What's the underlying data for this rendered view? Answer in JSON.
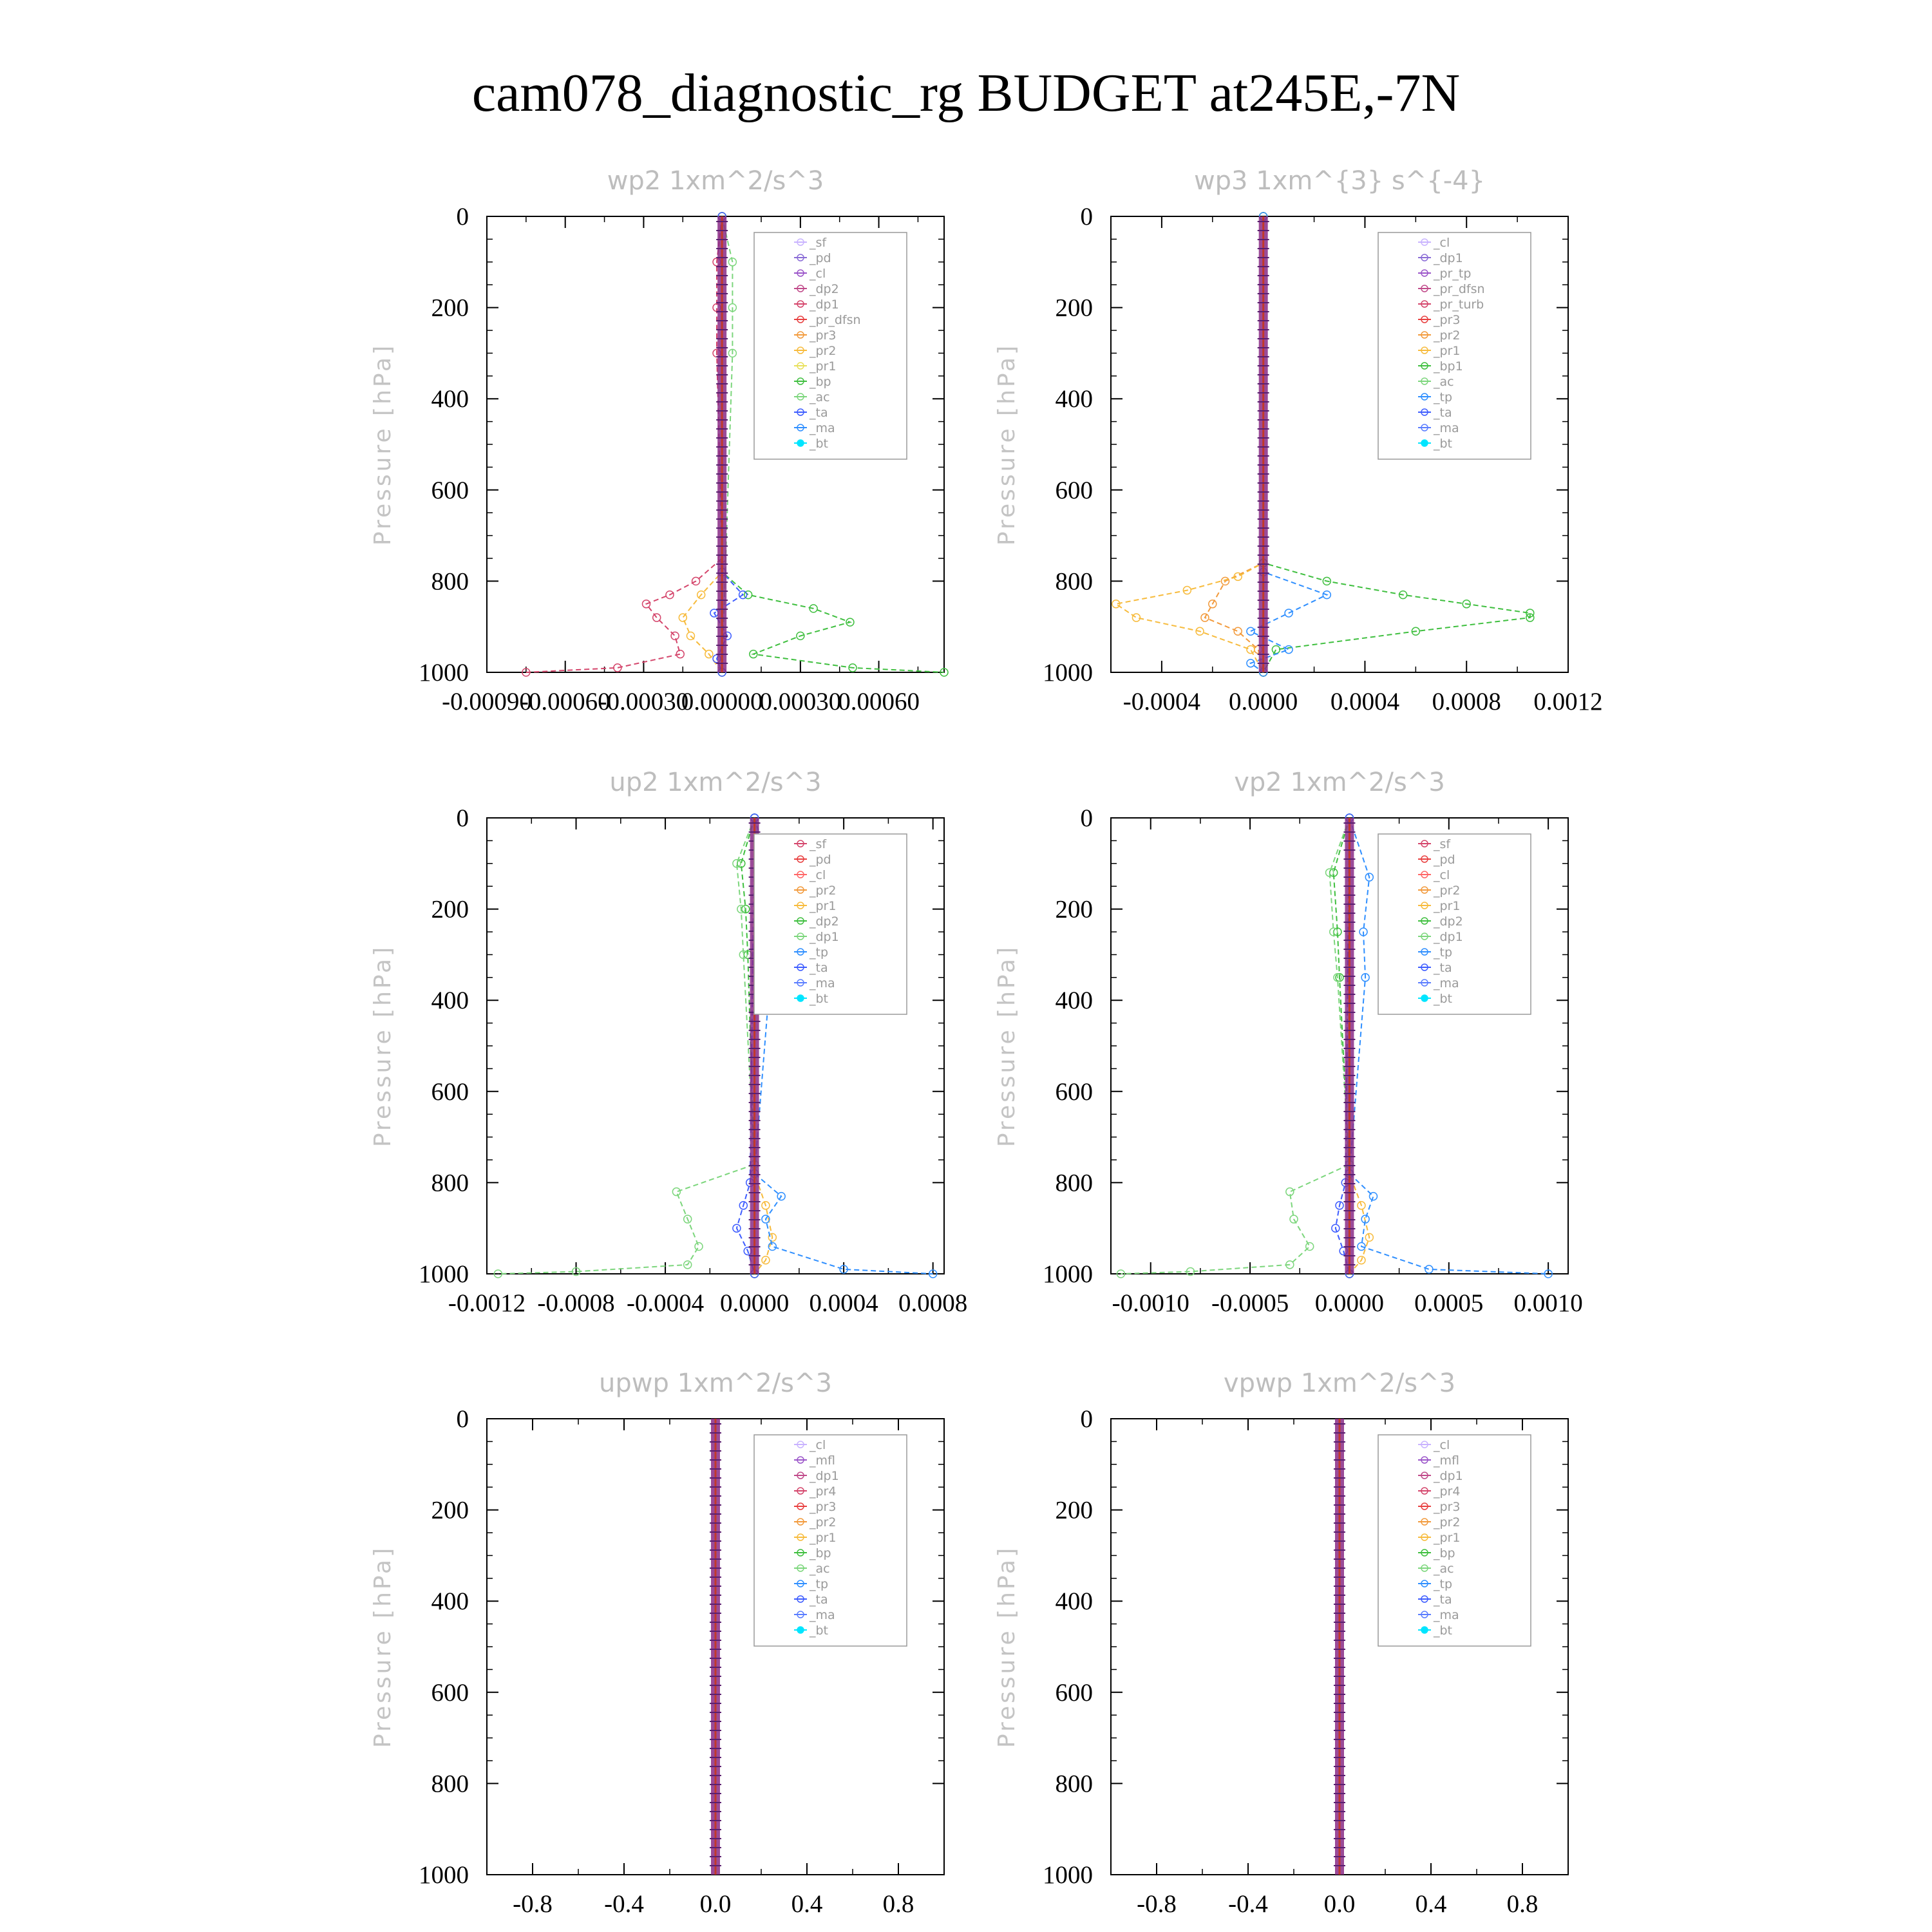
{
  "figure": {
    "title": "cam078_diagnostic_rg  BUDGET at245E,-7N"
  },
  "chart_data": [
    {
      "type": "line",
      "title": "wp2   1xm^2/s^3",
      "ylabel": "Pressure [hPa]",
      "ylim": [
        1000,
        0
      ],
      "yticks": [
        "0",
        "200",
        "400",
        "600",
        "800",
        "1000"
      ],
      "xlim": [
        -0.0009,
        0.00085
      ],
      "xticks": [
        -0.0009,
        -0.0006,
        -0.0003,
        0.0,
        0.0003,
        0.0006
      ],
      "xtick_labels": [
        "-0.00090",
        "-0.00060",
        "-0.00030",
        "0.00000",
        "0.00030",
        "0.00060"
      ],
      "legend_position": "upper-right",
      "series": [
        {
          "name": "_sf",
          "color": "#c9b3ff"
        },
        {
          "name": "_pd",
          "color": "#8a6cd6"
        },
        {
          "name": "_cl",
          "color": "#9b55c9"
        },
        {
          "name": "_dp2",
          "color": "#c04a8a"
        },
        {
          "name": "_dp1",
          "color": "#d4456b",
          "p": [
            0,
            100,
            200,
            300,
            750,
            800,
            830,
            850,
            880,
            920,
            960,
            990,
            1000
          ],
          "values": [
            0,
            -2e-05,
            -2e-05,
            -2e-05,
            0,
            -0.0001,
            -0.0002,
            -0.00029,
            -0.00025,
            -0.00018,
            -0.00016,
            -0.0004,
            -0.00075
          ]
        },
        {
          "name": "_pr_dfsn",
          "color": "#e84040"
        },
        {
          "name": "_pr3",
          "color": "#f29a3c"
        },
        {
          "name": "_pr2",
          "color": "#f7bb3c",
          "p": [
            0,
            780,
            830,
            880,
            920,
            960,
            1000
          ],
          "values": [
            0,
            0,
            -8e-05,
            -0.00015,
            -0.00012,
            -5e-05,
            0
          ]
        },
        {
          "name": "_pr1",
          "color": "#e8e05a"
        },
        {
          "name": "_bp",
          "color": "#3fbf3f",
          "p": [
            0,
            780,
            830,
            860,
            890,
            920,
            960,
            990,
            1000
          ],
          "values": [
            0,
            0,
            0.0001,
            0.00035,
            0.00049,
            0.0003,
            0.00012,
            0.0005,
            0.00085
          ]
        },
        {
          "name": "_ac",
          "color": "#7cd67c",
          "p": [
            0,
            100,
            200,
            300,
            1000
          ],
          "values": [
            0,
            4e-05,
            4e-05,
            4e-05,
            0
          ]
        },
        {
          "name": "_ta",
          "color": "#3d5cff",
          "p": [
            0,
            780,
            830,
            870,
            920,
            970,
            1000
          ],
          "values": [
            0,
            0,
            8e-05,
            -3e-05,
            2e-05,
            -2e-05,
            0
          ]
        },
        {
          "name": "_ma",
          "color": "#2f8fff"
        },
        {
          "name": "_bt",
          "color": "#00e5ff"
        }
      ]
    },
    {
      "type": "line",
      "title": "wp3   1xm^{3} s^{-4}",
      "ylabel": "Pressure [hPa]",
      "ylim": [
        1000,
        0
      ],
      "yticks": [
        "0",
        "200",
        "400",
        "600",
        "800",
        "1000"
      ],
      "xlim": [
        -0.0006,
        0.0012
      ],
      "xticks": [
        -0.0004,
        0.0,
        0.0004,
        0.0008,
        0.0012
      ],
      "xtick_labels": [
        "-0.0004",
        "0.0000",
        "0.0004",
        "0.0008",
        "0.0012"
      ],
      "legend_position": "upper-right",
      "series": [
        {
          "name": "_cl",
          "color": "#c9b3ff"
        },
        {
          "name": "_dp1",
          "color": "#8a6cd6"
        },
        {
          "name": "_pr_tp",
          "color": "#9b55c9"
        },
        {
          "name": "_pr_dfsn",
          "color": "#c04a8a"
        },
        {
          "name": "_pr_turb",
          "color": "#d4456b"
        },
        {
          "name": "_pr3",
          "color": "#e84040"
        },
        {
          "name": "_pr2",
          "color": "#f29a3c",
          "p": [
            0,
            760,
            800,
            850,
            880,
            910,
            950,
            1000
          ],
          "values": [
            0,
            0,
            -0.00015,
            -0.0002,
            -0.00023,
            -0.0001,
            -2e-05,
            0
          ]
        },
        {
          "name": "_pr1",
          "color": "#f7bb3c",
          "p": [
            0,
            760,
            790,
            820,
            850,
            880,
            910,
            950,
            1000
          ],
          "values": [
            0,
            0,
            -0.0001,
            -0.0003,
            -0.00058,
            -0.0005,
            -0.00025,
            -5e-05,
            0
          ]
        },
        {
          "name": "_bp1",
          "color": "#3fbf3f",
          "p": [
            0,
            760,
            800,
            830,
            850,
            870,
            880,
            910,
            950,
            1000
          ],
          "values": [
            0,
            0,
            0.00025,
            0.00055,
            0.0008,
            0.00105,
            0.00105,
            0.0006,
            5e-05,
            0
          ]
        },
        {
          "name": "_ac",
          "color": "#7cd67c"
        },
        {
          "name": "_tp",
          "color": "#2f8fff",
          "p": [
            0,
            780,
            830,
            870,
            910,
            950,
            980,
            1000
          ],
          "values": [
            0,
            0,
            0.00025,
            0.0001,
            -5e-05,
            0.0001,
            -5e-05,
            0
          ]
        },
        {
          "name": "_ta",
          "color": "#3d5cff"
        },
        {
          "name": "_ma",
          "color": "#5a7dff"
        },
        {
          "name": "_bt",
          "color": "#00e5ff"
        }
      ]
    },
    {
      "type": "line",
      "title": "up2   1xm^2/s^3",
      "ylabel": "Pressure [hPa]",
      "ylim": [
        1000,
        0
      ],
      "yticks": [
        "0",
        "200",
        "400",
        "600",
        "800",
        "1000"
      ],
      "xlim": [
        -0.0012,
        0.00085
      ],
      "xticks": [
        -0.0012,
        -0.0008,
        -0.0004,
        0.0,
        0.0004,
        0.0008
      ],
      "xtick_labels": [
        "-0.0012",
        "-0.0008",
        "-0.0004",
        "0.0000",
        "0.0004",
        "0.0008"
      ],
      "legend_position": "upper-right",
      "series": [
        {
          "name": "_sf",
          "color": "#d4456b"
        },
        {
          "name": "_pd",
          "color": "#e84040"
        },
        {
          "name": "_cl",
          "color": "#ff6666"
        },
        {
          "name": "_pr2",
          "color": "#f29a3c"
        },
        {
          "name": "_pr1",
          "color": "#f7bb3c",
          "p": [
            0,
            780,
            850,
            920,
            970,
            1000
          ],
          "values": [
            0,
            0,
            5e-05,
            8e-05,
            5e-05,
            0
          ]
        },
        {
          "name": "_dp2",
          "color": "#3fbf3f",
          "p": [
            0,
            100,
            200,
            300,
            780,
            1000
          ],
          "values": [
            0,
            -6e-05,
            -4e-05,
            -3e-05,
            0,
            0
          ]
        },
        {
          "name": "_dp1",
          "color": "#7cd67c",
          "p": [
            0,
            100,
            200,
            300,
            760,
            820,
            880,
            940,
            980,
            995,
            1000
          ],
          "values": [
            0,
            -8e-05,
            -6e-05,
            -5e-05,
            0,
            -0.00035,
            -0.0003,
            -0.00025,
            -0.0003,
            -0.0008,
            -0.00115
          ]
        },
        {
          "name": "_tp",
          "color": "#2f8fff",
          "p": [
            0,
            130,
            250,
            350,
            780,
            830,
            880,
            940,
            990,
            1000
          ],
          "values": [
            0,
            8e-05,
            5e-05,
            7e-05,
            0,
            0.00012,
            5e-05,
            8e-05,
            0.0004,
            0.0008
          ]
        },
        {
          "name": "_ta",
          "color": "#3d5cff",
          "p": [
            0,
            800,
            850,
            900,
            950,
            1000
          ],
          "values": [
            0,
            -2e-05,
            -5e-05,
            -8e-05,
            -3e-05,
            0
          ]
        },
        {
          "name": "_ma",
          "color": "#5a7dff"
        },
        {
          "name": "_bt",
          "color": "#00e5ff"
        }
      ]
    },
    {
      "type": "line",
      "title": "vp2   1xm^2/s^3",
      "ylabel": "Pressure [hPa]",
      "ylim": [
        1000,
        0
      ],
      "yticks": [
        "0",
        "200",
        "400",
        "600",
        "800",
        "1000"
      ],
      "xlim": [
        -0.0012,
        0.0011
      ],
      "xticks": [
        -0.001,
        -0.0005,
        0.0,
        0.0005,
        0.001
      ],
      "xtick_labels": [
        "-0.0010",
        "-0.0005",
        "0.0000",
        "0.0005",
        "0.0010"
      ],
      "legend_position": "upper-right",
      "series": [
        {
          "name": "_sf",
          "color": "#d4456b"
        },
        {
          "name": "_pd",
          "color": "#e84040"
        },
        {
          "name": "_cl",
          "color": "#ff6666"
        },
        {
          "name": "_pr2",
          "color": "#f29a3c"
        },
        {
          "name": "_pr1",
          "color": "#f7bb3c",
          "p": [
            0,
            780,
            850,
            920,
            970,
            1000
          ],
          "values": [
            0,
            0,
            6e-05,
            0.0001,
            6e-05,
            0
          ]
        },
        {
          "name": "_dp2",
          "color": "#3fbf3f",
          "p": [
            0,
            120,
            250,
            350,
            780,
            1000
          ],
          "values": [
            0,
            -8e-05,
            -6e-05,
            -5e-05,
            0,
            0
          ]
        },
        {
          "name": "_dp1",
          "color": "#7cd67c",
          "p": [
            0,
            120,
            250,
            350,
            760,
            820,
            880,
            940,
            980,
            995,
            1000
          ],
          "values": [
            0,
            -0.0001,
            -8e-05,
            -6e-05,
            0,
            -0.0003,
            -0.00028,
            -0.0002,
            -0.0003,
            -0.0008,
            -0.00115
          ]
        },
        {
          "name": "_tp",
          "color": "#2f8fff",
          "p": [
            0,
            130,
            250,
            350,
            780,
            830,
            880,
            940,
            990,
            1000
          ],
          "values": [
            0,
            0.0001,
            7e-05,
            8e-05,
            0,
            0.00012,
            8e-05,
            6e-05,
            0.0004,
            0.001
          ]
        },
        {
          "name": "_ta",
          "color": "#3d5cff",
          "p": [
            0,
            800,
            850,
            900,
            950,
            1000
          ],
          "values": [
            0,
            -2e-05,
            -5e-05,
            -7e-05,
            -3e-05,
            0
          ]
        },
        {
          "name": "_ma",
          "color": "#5a7dff"
        },
        {
          "name": "_bt",
          "color": "#00e5ff"
        }
      ]
    },
    {
      "type": "line",
      "title": "upwp   1xm^2/s^3",
      "ylabel": "Pressure [hPa]",
      "ylim": [
        1000,
        0
      ],
      "yticks": [
        "0",
        "200",
        "400",
        "600",
        "800",
        "1000"
      ],
      "xlim": [
        -1.0,
        1.0
      ],
      "xticks": [
        -0.8,
        -0.4,
        0.0,
        0.4,
        0.8
      ],
      "xtick_labels": [
        "-0.8",
        "-0.4",
        "0.0",
        "0.4",
        "0.8"
      ],
      "legend_position": "upper-right",
      "series": [
        {
          "name": "_cl",
          "color": "#c9b3ff"
        },
        {
          "name": "_mfl",
          "color": "#9b55c9"
        },
        {
          "name": "_dp1",
          "color": "#c04a8a"
        },
        {
          "name": "_pr4",
          "color": "#d4456b"
        },
        {
          "name": "_pr3",
          "color": "#e84040"
        },
        {
          "name": "_pr2",
          "color": "#f29a3c"
        },
        {
          "name": "_pr1",
          "color": "#f7bb3c"
        },
        {
          "name": "_bp",
          "color": "#3fbf3f"
        },
        {
          "name": "_ac",
          "color": "#7cd67c"
        },
        {
          "name": "_tp",
          "color": "#2f8fff"
        },
        {
          "name": "_ta",
          "color": "#3d5cff"
        },
        {
          "name": "_ma",
          "color": "#5a7dff"
        },
        {
          "name": "_bt",
          "color": "#00e5ff"
        }
      ]
    },
    {
      "type": "line",
      "title": "vpwp   1xm^2/s^3",
      "ylabel": "Pressure [hPa]",
      "ylim": [
        1000,
        0
      ],
      "yticks": [
        "0",
        "200",
        "400",
        "600",
        "800",
        "1000"
      ],
      "xlim": [
        -1.0,
        1.0
      ],
      "xticks": [
        -0.8,
        -0.4,
        0.0,
        0.4,
        0.8
      ],
      "xtick_labels": [
        "-0.8",
        "-0.4",
        "0.0",
        "0.4",
        "0.8"
      ],
      "legend_position": "upper-right",
      "series": [
        {
          "name": "_cl",
          "color": "#c9b3ff"
        },
        {
          "name": "_mfl",
          "color": "#9b55c9"
        },
        {
          "name": "_dp1",
          "color": "#c04a8a"
        },
        {
          "name": "_pr4",
          "color": "#d4456b"
        },
        {
          "name": "_pr3",
          "color": "#e84040"
        },
        {
          "name": "_pr2",
          "color": "#f29a3c"
        },
        {
          "name": "_pr1",
          "color": "#f7bb3c"
        },
        {
          "name": "_bp",
          "color": "#3fbf3f"
        },
        {
          "name": "_ac",
          "color": "#7cd67c"
        },
        {
          "name": "_tp",
          "color": "#2f8fff"
        },
        {
          "name": "_ta",
          "color": "#3d5cff"
        },
        {
          "name": "_ma",
          "color": "#5a7dff"
        },
        {
          "name": "_bt",
          "color": "#00e5ff"
        }
      ]
    }
  ]
}
